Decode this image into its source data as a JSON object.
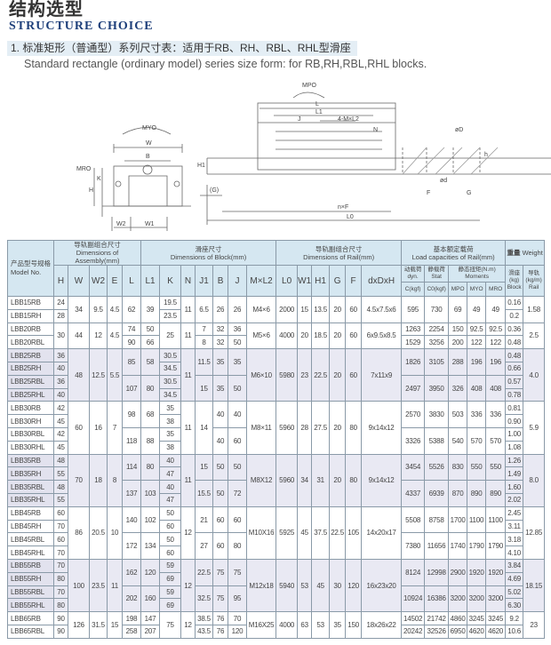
{
  "header": {
    "title_cn": "结构选型",
    "title_en": "STRUCTURE CHOICE",
    "section_cn": "1. 标准矩形（普通型）系列尺寸表：适用于RB、RH、RBL、RHL型滑座",
    "section_en": "Standard rectangle (ordinary model) series size form: for RB,RH,RBL,RHL blocks."
  },
  "diagram": {
    "front_labels": {
      "myo": "MYO",
      "w": "W",
      "b": "B",
      "h": "H",
      "k": "K",
      "mro": "MRO",
      "w2": "W2",
      "w1": "W1"
    },
    "side_labels": {
      "mpo": "MPO",
      "l": "L",
      "l1": "L1",
      "j": "J",
      "m": "4-M×L2",
      "n": "N",
      "h1": "H1",
      "g": "(G)",
      "nf": "n×F",
      "l0": "L0",
      "dD": "øD",
      "hh": "h",
      "d": "ød",
      "f": "F",
      "g2": "G"
    }
  },
  "table": {
    "head": {
      "model_cn": "产品型号规格",
      "model_en": "Model No.",
      "assembly_cn": "导轨副组合尺寸",
      "assembly_en": "Dimensions of Assembly(mm)",
      "block_cn": "滑座尺寸",
      "block_en": "Dimensions of Block(mm)",
      "rail_cn": "导轨副组合尺寸",
      "rail_en": "Dimensions of Rail(mm)",
      "load_cn": "基本额定载荷",
      "load_en": "Load capacities of Rail(mm)",
      "weight_cn": "重量",
      "weight_en": "Weight",
      "cols": [
        "H",
        "W",
        "W2",
        "E",
        "L",
        "L1",
        "K",
        "N",
        "J1",
        "B",
        "J",
        "M×L2",
        "L0",
        "W1",
        "H1",
        "G",
        "F",
        "dxDxH"
      ],
      "dyn_cn": "动载荷",
      "dyn_en": "dyn.",
      "stat_cn": "静载荷",
      "stat_en": "Stat",
      "moments_cn": "静态扭矩(N.m)",
      "moments_en": "Moments",
      "block_w_cn": "滑座",
      "block_w_unit": "(kg)",
      "block_w_en": "Block",
      "rail_w_cn": "导轨",
      "rail_w_unit": "(kg/m)",
      "rail_w_en": "Rail",
      "load_cols": [
        "C(kgf)",
        "C0(kgf)",
        "MPO",
        "MYO",
        "MRO"
      ]
    },
    "groups": [
      {
        "shaded": false,
        "rows": [
          [
            "LBB15RB",
            "24",
            [
              "34",
              2
            ],
            [
              "9.5",
              2
            ],
            [
              "4.5",
              2
            ],
            [
              "62",
              2
            ],
            [
              "39",
              2
            ],
            "19.5",
            [
              "11",
              2
            ],
            [
              "6.5",
              2
            ],
            [
              "26",
              2
            ],
            [
              "26",
              2
            ],
            [
              "M4×6",
              2
            ],
            [
              "2000",
              2
            ],
            [
              "15",
              2
            ],
            [
              "13.5",
              2
            ],
            [
              "20",
              2
            ],
            [
              "60",
              2
            ],
            [
              "4.5x7.5x6",
              2
            ],
            [
              "595",
              2
            ],
            [
              "730",
              2
            ],
            [
              "69",
              2
            ],
            [
              "49",
              2
            ],
            [
              "49",
              2
            ],
            "0.16",
            [
              "1.58",
              2
            ]
          ],
          [
            "LBB15RH",
            "28",
            "23.5",
            "0.2"
          ]
        ]
      },
      {
        "shaded": false,
        "rows": [
          [
            "LBB20RB",
            [
              "30",
              2
            ],
            [
              "44",
              2
            ],
            [
              "12",
              2
            ],
            [
              "4.5",
              2
            ],
            "74",
            "50",
            [
              "25",
              2
            ],
            [
              "11",
              2
            ],
            "7",
            "32",
            "36",
            [
              "M5×6",
              2
            ],
            [
              "4000",
              2
            ],
            [
              "20",
              2
            ],
            [
              "18.5",
              2
            ],
            [
              "20",
              2
            ],
            [
              "60",
              2
            ],
            [
              "6x9.5x8.5",
              2
            ],
            "1263",
            "2254",
            "150",
            "92.5",
            "92.5",
            "0.36",
            [
              "2.5",
              2
            ]
          ],
          [
            "LBB20RBL",
            "90",
            "66",
            "8",
            "32",
            "50",
            "1529",
            "3256",
            "200",
            "122",
            "122",
            "0.48"
          ]
        ]
      },
      {
        "shaded": true,
        "rows": [
          [
            "LBB25RB",
            "36",
            [
              "48",
              4
            ],
            [
              "12.5",
              4
            ],
            [
              "5.5",
              4
            ],
            [
              "85",
              2
            ],
            [
              "58",
              2
            ],
            "30.5",
            [
              "11",
              4
            ],
            [
              "11.5",
              2
            ],
            [
              "35",
              2
            ],
            [
              "35",
              2
            ],
            [
              "M6×10",
              4
            ],
            [
              "5980",
              4
            ],
            [
              "23",
              4
            ],
            [
              "22.5",
              4
            ],
            [
              "20",
              4
            ],
            [
              "60",
              4
            ],
            [
              "7x11x9",
              4
            ],
            [
              "1826",
              2
            ],
            [
              "3105",
              2
            ],
            [
              "288",
              2
            ],
            [
              "196",
              2
            ],
            [
              "196",
              2
            ],
            "0.48",
            [
              "4.0",
              4
            ]
          ],
          [
            "LBB25RH",
            "40",
            "34.5",
            "0.66"
          ],
          [
            "LBB25RBL",
            "36",
            [
              "107",
              2
            ],
            [
              "80",
              2
            ],
            "30.5",
            [
              "15",
              2
            ],
            [
              "35",
              2
            ],
            [
              "50",
              2
            ],
            [
              "2497",
              2
            ],
            [
              "3950",
              2
            ],
            [
              "326",
              2
            ],
            [
              "408",
              2
            ],
            [
              "408",
              2
            ],
            "0.57"
          ],
          [
            "LBB25RHL",
            "40",
            "34.5",
            "0.78"
          ]
        ]
      },
      {
        "shaded": false,
        "rows": [
          [
            "LBB30RB",
            "42",
            [
              "60",
              4
            ],
            [
              "16",
              4
            ],
            [
              "7",
              4
            ],
            [
              "98",
              2
            ],
            [
              "68",
              2
            ],
            "35",
            [
              "11",
              4
            ],
            [
              "14",
              4
            ],
            [
              "40",
              2
            ],
            [
              "40",
              2
            ],
            [
              "M8×11",
              4
            ],
            [
              "5960",
              4
            ],
            [
              "28",
              4
            ],
            [
              "27.5",
              4
            ],
            [
              "20",
              4
            ],
            [
              "80",
              4
            ],
            [
              "9x14x12",
              4
            ],
            [
              "2570",
              2
            ],
            [
              "3830",
              2
            ],
            [
              "503",
              2
            ],
            [
              "336",
              2
            ],
            [
              "336",
              2
            ],
            "0.81",
            [
              "5.9",
              4
            ]
          ],
          [
            "LBB30RH",
            "45",
            "38",
            "0.90"
          ],
          [
            "LBB30RBL",
            "42",
            [
              "118",
              2
            ],
            [
              "88",
              2
            ],
            "35",
            [
              "40",
              2
            ],
            [
              "60",
              2
            ],
            [
              "3326",
              2
            ],
            [
              "5388",
              2
            ],
            [
              "540",
              2
            ],
            [
              "570",
              2
            ],
            [
              "570",
              2
            ],
            "1.00"
          ],
          [
            "LBB30RHL",
            "45",
            "38",
            "1.08"
          ]
        ]
      },
      {
        "shaded": true,
        "rows": [
          [
            "LBB35RB",
            "48",
            [
              "70",
              4
            ],
            [
              "18",
              4
            ],
            [
              "8",
              4
            ],
            [
              "114",
              2
            ],
            [
              "80",
              2
            ],
            "40",
            [
              "11",
              4
            ],
            [
              "15",
              2
            ],
            [
              "50",
              2
            ],
            [
              "50",
              2
            ],
            [
              "M8X12",
              4
            ],
            [
              "5960",
              4
            ],
            [
              "34",
              4
            ],
            [
              "31",
              4
            ],
            [
              "20",
              4
            ],
            [
              "80",
              4
            ],
            [
              "9x14x12",
              4
            ],
            [
              "3454",
              2
            ],
            [
              "5526",
              2
            ],
            [
              "830",
              2
            ],
            [
              "550",
              2
            ],
            [
              "550",
              2
            ],
            "1.26",
            [
              "8.0",
              4
            ]
          ],
          [
            "LBB35RH",
            "55",
            "47",
            "1.49"
          ],
          [
            "LBB35RBL",
            "48",
            [
              "137",
              2
            ],
            [
              "103",
              2
            ],
            "40",
            [
              "15.5",
              2
            ],
            [
              "50",
              2
            ],
            [
              "72",
              2
            ],
            [
              "4337",
              2
            ],
            [
              "6939",
              2
            ],
            [
              "870",
              2
            ],
            [
              "890",
              2
            ],
            [
              "890",
              2
            ],
            "1.60"
          ],
          [
            "LBB35RHL",
            "55",
            "47",
            "2.02"
          ]
        ]
      },
      {
        "shaded": false,
        "rows": [
          [
            "LBB45RB",
            "60",
            [
              "86",
              4
            ],
            [
              "20.5",
              4
            ],
            [
              "10",
              4
            ],
            [
              "140",
              2
            ],
            [
              "102",
              2
            ],
            "50",
            [
              "12",
              4
            ],
            [
              "21",
              2
            ],
            [
              "60",
              2
            ],
            [
              "60",
              2
            ],
            [
              "M10X16",
              4
            ],
            [
              "5925",
              4
            ],
            [
              "45",
              4
            ],
            [
              "37.5",
              4
            ],
            [
              "22.5",
              4
            ],
            [
              "105",
              4
            ],
            [
              "14x20x17",
              4
            ],
            [
              "5508",
              2
            ],
            [
              "8758",
              2
            ],
            [
              "1700",
              2
            ],
            [
              "1100",
              2
            ],
            [
              "1100",
              2
            ],
            "2.45",
            [
              "12.85",
              4
            ]
          ],
          [
            "LBB45RH",
            "70",
            "60",
            "3.11"
          ],
          [
            "LBB45RBL",
            "60",
            [
              "172",
              2
            ],
            [
              "134",
              2
            ],
            "50",
            [
              "27",
              2
            ],
            [
              "60",
              2
            ],
            [
              "80",
              2
            ],
            [
              "7380",
              2
            ],
            [
              "11656",
              2
            ],
            [
              "1740",
              2
            ],
            [
              "1790",
              2
            ],
            [
              "1790",
              2
            ],
            "3.18"
          ],
          [
            "LBB45RHL",
            "70",
            "60",
            "4.10"
          ]
        ]
      },
      {
        "shaded": true,
        "rows": [
          [
            "LBB55RB",
            "70",
            [
              "100",
              4
            ],
            [
              "23.5",
              4
            ],
            [
              "11",
              4
            ],
            [
              "162",
              2
            ],
            [
              "120",
              2
            ],
            "59",
            [
              "12",
              4
            ],
            [
              "22.5",
              2
            ],
            [
              "75",
              2
            ],
            [
              "75",
              2
            ],
            [
              "M12x18",
              4
            ],
            [
              "5940",
              4
            ],
            [
              "53",
              4
            ],
            [
              "45",
              4
            ],
            [
              "30",
              4
            ],
            [
              "120",
              4
            ],
            [
              "16x23x20",
              4
            ],
            [
              "8124",
              2
            ],
            [
              "12998",
              2
            ],
            [
              "2900",
              2
            ],
            [
              "1920",
              2
            ],
            [
              "1920",
              2
            ],
            "3.84",
            [
              "18.15",
              4
            ]
          ],
          [
            "LBB55RH",
            "80",
            "69",
            "4.69"
          ],
          [
            "LBB55RBL",
            "70",
            [
              "202",
              2
            ],
            [
              "160",
              2
            ],
            "59",
            [
              "32.5",
              2
            ],
            [
              "75",
              2
            ],
            [
              "95",
              2
            ],
            [
              "10924",
              2
            ],
            [
              "16386",
              2
            ],
            [
              "3200",
              2
            ],
            [
              "3200",
              2
            ],
            [
              "3200",
              2
            ],
            "5.02"
          ],
          [
            "LBB55RHL",
            "80",
            "69",
            "6.30"
          ]
        ]
      },
      {
        "shaded": false,
        "rows": [
          [
            "LBB65RB",
            "90",
            [
              "126",
              2
            ],
            [
              "31.5",
              2
            ],
            [
              "15",
              2
            ],
            "198",
            "147",
            [
              "75",
              2
            ],
            [
              "12",
              2
            ],
            "38.5",
            "76",
            "70",
            [
              "M16X25",
              2
            ],
            [
              "4000",
              2
            ],
            [
              "63",
              2
            ],
            [
              "53",
              2
            ],
            [
              "35",
              2
            ],
            [
              "150",
              2
            ],
            [
              "18x26x22",
              2
            ],
            "14502",
            "21742",
            "4860",
            "3245",
            "3245",
            "9.2",
            [
              "23",
              2
            ]
          ],
          [
            "LBB65RBL",
            "90",
            "258",
            "207",
            "43.5",
            "76",
            "120",
            "20242",
            "32526",
            "6950",
            "4620",
            "4620",
            "10.6"
          ]
        ]
      }
    ]
  }
}
